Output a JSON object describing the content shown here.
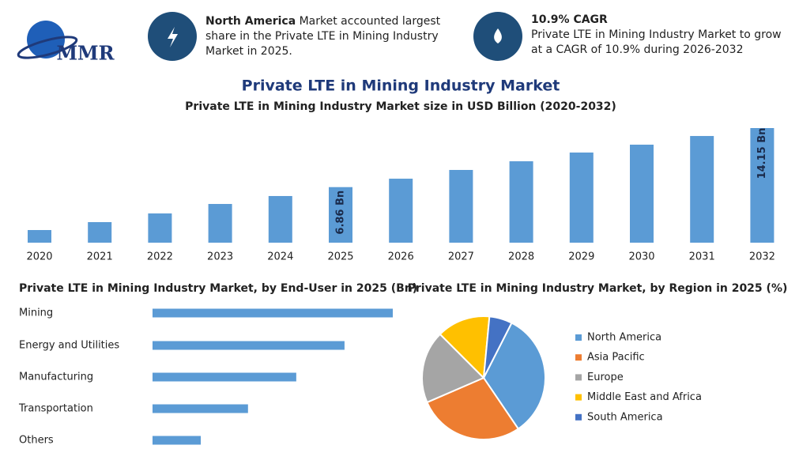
{
  "header": {
    "logo": "MMR",
    "callouts": [
      {
        "bold": "North America",
        "text": "Market accounted largest share in the Private LTE in Mining Industry Market in 2025."
      },
      {
        "bold": "10.9% CAGR",
        "text": "Private LTE in Mining Industry Market to grow at a CAGR of 10.9% during 2026-2032"
      }
    ]
  },
  "chart_data": [
    {
      "type": "bar",
      "title": "Private LTE in Mining Industry Market",
      "subtitle": "Private LTE in Mining Industry Market size in USD Billion (2020-2032)",
      "categories": [
        "2020",
        "2021",
        "2022",
        "2023",
        "2024",
        "2025",
        "2026",
        "2027",
        "2028",
        "2029",
        "2030",
        "2031",
        "2032"
      ],
      "values": [
        1.56,
        2.54,
        3.61,
        4.78,
        5.76,
        6.86,
        7.9,
        8.98,
        10.05,
        11.13,
        12.1,
        13.17,
        14.15
      ],
      "value_labels": [
        null,
        null,
        null,
        null,
        null,
        "6.86 Bn",
        null,
        null,
        null,
        null,
        null,
        null,
        "14.15 Bn"
      ],
      "color": "#5b9bd5"
    },
    {
      "type": "hbar",
      "title": "Private LTE in Mining Industry Market, by End-User in 2025 (Bn)",
      "categories": [
        "Mining",
        "Energy and Utilities",
        "Manufacturing",
        "Transportation",
        "Others"
      ],
      "values": [
        2.29,
        1.83,
        1.37,
        0.91,
        0.46
      ],
      "color": "#5b9bd5"
    },
    {
      "type": "pie",
      "title": "Private LTE in Mining Industry Market, by Region in 2025 (%)",
      "categories": [
        "North America",
        "Asia Pacific",
        "Europe",
        "Middle East and Africa",
        "South America"
      ],
      "values": [
        33,
        28,
        19,
        14,
        6
      ],
      "colors": [
        "#5b9bd5",
        "#ed7d31",
        "#a5a5a5",
        "#ffc000",
        "#4472c4"
      ]
    }
  ]
}
